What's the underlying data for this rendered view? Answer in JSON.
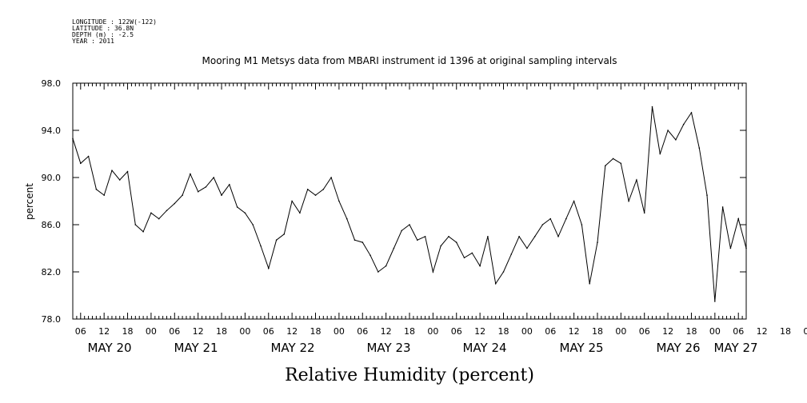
{
  "header": {
    "meta_lines": [
      "LONGITUDE : 122W(-122)",
      "LATITUDE : 36.8N",
      "DEPTH (m) : -2.5",
      "YEAR : 2011"
    ],
    "title": "Mooring M1 Metsys data from MBARI instrument id 1396 at original sampling intervals"
  },
  "chart_data": {
    "type": "line",
    "title": "Mooring M1 Metsys data from MBARI instrument id 1396 at original sampling intervals",
    "xlabel": "Relative Humidity (percent)",
    "ylabel": "percent",
    "ylim": [
      78.0,
      98.0
    ],
    "y_ticks": [
      "78.0",
      "82.0",
      "86.0",
      "90.0",
      "94.0",
      "98.0"
    ],
    "xlim_hours": [
      "2011-05-20T04:00",
      "2011-05-27T08:00"
    ],
    "x_hour_ticks": [
      "06",
      "12",
      "18",
      "00",
      "06",
      "12",
      "18",
      "00",
      "06",
      "12",
      "18",
      "00",
      "06",
      "12",
      "18",
      "00",
      "06",
      "12",
      "18",
      "00",
      "06",
      "12",
      "18",
      "00",
      "06",
      "12",
      "18",
      "00",
      "06",
      "12",
      "18",
      "00",
      "06"
    ],
    "x_day_labels": [
      "MAY 20",
      "MAY 21",
      "MAY 22",
      "MAY 23",
      "MAY 24",
      "MAY 25",
      "MAY 26",
      "MAY 27"
    ],
    "grid": false,
    "series": [
      {
        "x": [
          "2011-05-20T04:00",
          "2011-05-20T06:00",
          "2011-05-20T08:00",
          "2011-05-20T10:00",
          "2011-05-20T12:00",
          "2011-05-20T14:00",
          "2011-05-20T16:00",
          "2011-05-20T18:00",
          "2011-05-20T20:00",
          "2011-05-20T22:00",
          "2011-05-21T00:00",
          "2011-05-21T02:00",
          "2011-05-21T04:00",
          "2011-05-21T06:00",
          "2011-05-21T08:00",
          "2011-05-21T10:00",
          "2011-05-21T12:00",
          "2011-05-21T14:00",
          "2011-05-21T16:00",
          "2011-05-21T18:00",
          "2011-05-21T20:00",
          "2011-05-21T22:00",
          "2011-05-22T00:00",
          "2011-05-22T02:00",
          "2011-05-22T04:00",
          "2011-05-22T06:00",
          "2011-05-22T08:00",
          "2011-05-22T10:00",
          "2011-05-22T12:00",
          "2011-05-22T14:00",
          "2011-05-22T16:00",
          "2011-05-22T18:00",
          "2011-05-22T20:00",
          "2011-05-22T22:00",
          "2011-05-23T00:00",
          "2011-05-23T02:00",
          "2011-05-23T04:00",
          "2011-05-23T06:00",
          "2011-05-23T08:00",
          "2011-05-23T10:00",
          "2011-05-23T12:00",
          "2011-05-23T14:00",
          "2011-05-23T16:00",
          "2011-05-23T18:00",
          "2011-05-23T20:00",
          "2011-05-23T22:00",
          "2011-05-24T00:00",
          "2011-05-24T02:00",
          "2011-05-24T04:00",
          "2011-05-24T06:00",
          "2011-05-24T08:00",
          "2011-05-24T10:00",
          "2011-05-24T12:00",
          "2011-05-24T14:00",
          "2011-05-24T16:00",
          "2011-05-24T18:00",
          "2011-05-24T20:00",
          "2011-05-24T22:00",
          "2011-05-25T00:00",
          "2011-05-25T02:00",
          "2011-05-25T04:00",
          "2011-05-25T06:00",
          "2011-05-25T08:00",
          "2011-05-25T10:00",
          "2011-05-25T12:00",
          "2011-05-25T14:00",
          "2011-05-25T16:00",
          "2011-05-25T18:00",
          "2011-05-25T20:00",
          "2011-05-25T22:00",
          "2011-05-26T00:00",
          "2011-05-26T02:00",
          "2011-05-26T04:00",
          "2011-05-26T06:00",
          "2011-05-26T08:00",
          "2011-05-26T10:00",
          "2011-05-26T12:00",
          "2011-05-26T14:00",
          "2011-05-26T16:00",
          "2011-05-26T18:00",
          "2011-05-26T20:00",
          "2011-05-26T22:00",
          "2011-05-27T00:00",
          "2011-05-27T02:00",
          "2011-05-27T04:00",
          "2011-05-27T06:00",
          "2011-05-27T08:00"
        ],
        "values": [
          93.3,
          91.2,
          91.8,
          89.0,
          88.5,
          90.6,
          89.8,
          90.5,
          86.0,
          85.4,
          87.0,
          86.5,
          87.2,
          87.8,
          88.5,
          90.3,
          88.8,
          89.2,
          90.0,
          88.5,
          89.4,
          87.5,
          87.0,
          86.0,
          84.2,
          82.3,
          84.7,
          85.2,
          88.0,
          87.0,
          89.0,
          88.5,
          89.0,
          90.0,
          88.0,
          86.5,
          84.7,
          84.5,
          83.4,
          82.0,
          82.5,
          84.0,
          85.5,
          86.0,
          84.7,
          85.0,
          82.0,
          84.2,
          85.0,
          84.5,
          83.2,
          83.6,
          82.5,
          85.0,
          81.0,
          82.0,
          83.5,
          85.0,
          84.0,
          85.0,
          86.0,
          86.5,
          85.0,
          86.5,
          88.0,
          86.0,
          81.0,
          84.5,
          91.0,
          91.6,
          91.2,
          88.0,
          89.8,
          87.0,
          96.0,
          92.0,
          94.0,
          93.2,
          94.5,
          95.5,
          92.5,
          88.5,
          79.5,
          87.5,
          84.0,
          86.5,
          84.0
        ]
      }
    ]
  }
}
